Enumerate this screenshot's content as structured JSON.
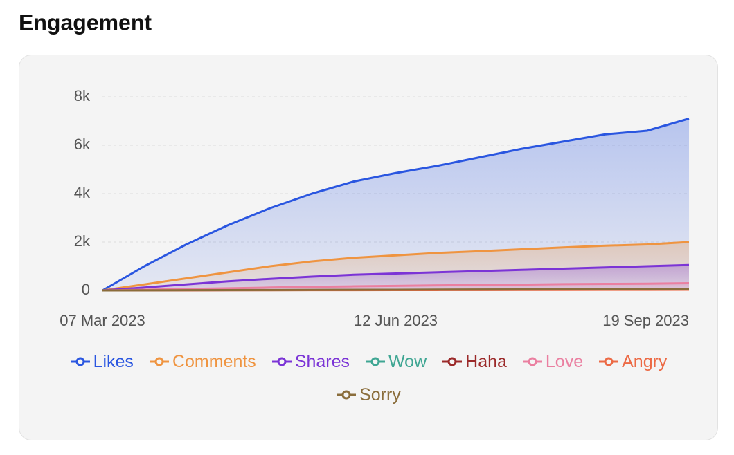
{
  "chart_data": {
    "type": "area",
    "title": "Engagement",
    "categories": [
      "07 Mar 2023",
      null,
      null,
      null,
      null,
      null,
      null,
      "12 Jun 2023",
      null,
      null,
      null,
      null,
      null,
      null,
      "19 Sep 2023"
    ],
    "series": [
      {
        "name": "Likes",
        "color": "#2a56e0",
        "values": [
          0,
          1000,
          1900,
          2700,
          3400,
          4000,
          4500,
          4850,
          5150,
          5500,
          5850,
          6150,
          6450,
          6600,
          7100
        ]
      },
      {
        "name": "Comments",
        "color": "#ef9440",
        "values": [
          0,
          250,
          500,
          750,
          1000,
          1200,
          1350,
          1450,
          1550,
          1620,
          1700,
          1780,
          1850,
          1900,
          2000
        ]
      },
      {
        "name": "Shares",
        "color": "#7b34d6",
        "values": [
          0,
          120,
          250,
          380,
          480,
          570,
          650,
          700,
          750,
          800,
          850,
          900,
          950,
          1000,
          1050
        ]
      },
      {
        "name": "Wow",
        "color": "#3fa693",
        "values": [
          0,
          3,
          6,
          9,
          12,
          15,
          17,
          19,
          21,
          23,
          25,
          27,
          29,
          31,
          33
        ]
      },
      {
        "name": "Haha",
        "color": "#9b2a2a",
        "values": [
          0,
          4,
          8,
          12,
          16,
          19,
          22,
          25,
          28,
          31,
          34,
          37,
          40,
          43,
          46
        ]
      },
      {
        "name": "Love",
        "color": "#ea7fa0",
        "values": [
          0,
          30,
          60,
          90,
          120,
          150,
          170,
          190,
          210,
          230,
          240,
          260,
          270,
          280,
          300
        ]
      },
      {
        "name": "Angry",
        "color": "#ec6a45",
        "values": [
          0,
          2,
          4,
          6,
          8,
          10,
          12,
          14,
          16,
          18,
          20,
          22,
          24,
          26,
          28
        ]
      },
      {
        "name": "Sorry",
        "color": "#8a6d3b",
        "values": [
          0,
          5,
          10,
          14,
          18,
          22,
          26,
          30,
          34,
          38,
          42,
          46,
          50,
          54,
          58
        ]
      }
    ],
    "ylim": [
      0,
      8000
    ],
    "yticks": [
      0,
      {
        "value": 2000,
        "label": "2k"
      },
      {
        "value": 4000,
        "label": "4k"
      },
      {
        "value": 6000,
        "label": "6k"
      },
      {
        "value": 8000,
        "label": "8k"
      }
    ],
    "grid": true
  }
}
